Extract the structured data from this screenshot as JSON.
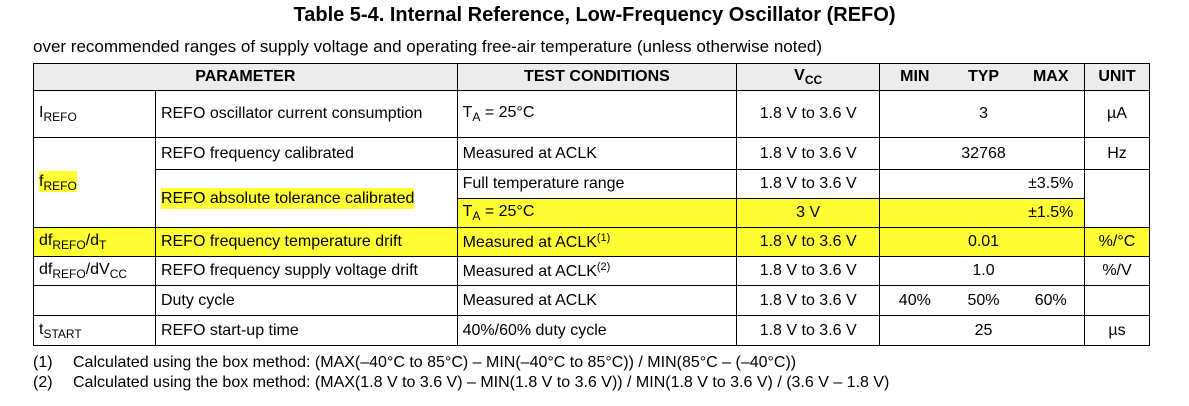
{
  "header": {
    "title": "Table 5-4. Internal Reference, Low-Frequency Oscillator (REFO)",
    "subtitle": "over recommended ranges of supply voltage and operating free-air temperature (unless otherwise noted)"
  },
  "table": {
    "columns": {
      "parameter": "PARAMETER",
      "conditions": "TEST CONDITIONS",
      "vcc": [
        "V",
        "CC"
      ],
      "min": "MIN",
      "typ": "TYP",
      "max": "MAX",
      "unit": "UNIT"
    },
    "rows": [
      {
        "symbol": [
          "I",
          "REFO"
        ],
        "parameter": "REFO oscillator current consumption",
        "conditions": [
          "T",
          "A",
          " = 25°C"
        ],
        "vcc": "1.8 V to 3.6 V",
        "typ": "3",
        "unit": "µA"
      },
      {
        "symbol": [
          "f",
          "REFO"
        ],
        "parameter": "REFO frequency calibrated",
        "conditions": [
          "Measured at ACLK"
        ],
        "vcc": "1.8 V to 3.6 V",
        "typ": "32768",
        "unit": "Hz"
      },
      {
        "parameter": "REFO absolute tolerance calibrated",
        "conditions": [
          "Full temperature range"
        ],
        "vcc": "1.8 V to 3.6 V",
        "max": "±3.5%"
      },
      {
        "conditions": [
          "T",
          "A",
          " = 25°C"
        ],
        "vcc": "3 V",
        "max": "±1.5%"
      },
      {
        "symbol": [
          "df",
          "REFO",
          "/d",
          "T"
        ],
        "parameter": "REFO frequency temperature drift",
        "conditions": [
          "Measured at ACLK",
          "(1)"
        ],
        "vcc": "1.8 V to 3.6 V",
        "typ": "0.01",
        "unit": "%/°C"
      },
      {
        "symbol": [
          "df",
          "REFO",
          "/dV",
          "CC"
        ],
        "parameter": "REFO frequency supply voltage drift",
        "conditions": [
          "Measured at ACLK",
          "(2)"
        ],
        "vcc": "1.8 V to 3.6 V",
        "typ": "1.0",
        "unit": "%/V"
      },
      {
        "parameter": "Duty cycle",
        "conditions": [
          "Measured at ACLK"
        ],
        "vcc": "1.8 V to 3.6 V",
        "min": "40%",
        "typ": "50%",
        "max": "60%"
      },
      {
        "symbol": [
          "t",
          "START"
        ],
        "parameter": "REFO start-up time",
        "conditions": [
          "40%/60% duty cycle"
        ],
        "vcc": "1.8 V to 3.6 V",
        "typ": "25",
        "unit": "µs"
      }
    ]
  },
  "footnotes": [
    {
      "label": "(1)",
      "text": "Calculated using the box method: (MAX(–40°C to 85°C) – MIN(–40°C to 85°C)) / MIN(85°C – (–40°C))"
    },
    {
      "label": "(2)",
      "text": "Calculated using the box method: (MAX(1.8 V to 3.6 V) – MIN(1.8 V to 3.6 V)) / MIN(1.8 V to 3.6 V) / (3.6 V – 1.8 V)"
    }
  ]
}
